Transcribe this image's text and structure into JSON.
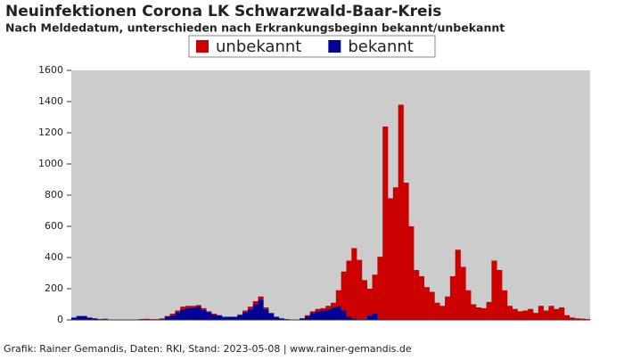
{
  "chart_data": {
    "type": "stacked-bar",
    "title": "Neuinfektionen Corona LK Schwarzwald-Baar-Kreis",
    "subtitle": "Nach Meldedatum, unterschieden nach Erkrankungsbeginn bekannt/unbekannt",
    "source": "Grafik: Rainer Gemandis, Daten: RKI, Stand: 2023-05-08 | www.rainer-gemandis.de",
    "categories": [
      null,
      null,
      null,
      null,
      null,
      null,
      null,
      null,
      null,
      null,
      null,
      null,
      null,
      null,
      null,
      null,
      null,
      null,
      null,
      null,
      null,
      null,
      null,
      null,
      null,
      null,
      null,
      null,
      null,
      null,
      null,
      null,
      null,
      null,
      null,
      null,
      null,
      null,
      null,
      null,
      null,
      null,
      null,
      null,
      null,
      null,
      null,
      null,
      null,
      null,
      null,
      null,
      null,
      null,
      null,
      null,
      null,
      null,
      null,
      null,
      null,
      null,
      null,
      null,
      null,
      null,
      null,
      null,
      null,
      null,
      null,
      null,
      null,
      null,
      null,
      null,
      null,
      null,
      null,
      null,
      null,
      null,
      null,
      null,
      null,
      null,
      null,
      null,
      null,
      null,
      null,
      null,
      null,
      null,
      null,
      null,
      null,
      null,
      null,
      null
    ],
    "series": [
      {
        "name": "unbekannt",
        "color": "#cc0000",
        "values": [
          0,
          0,
          0,
          0,
          0,
          0,
          3,
          0,
          0,
          0,
          0,
          0,
          0,
          0,
          5,
          5,
          5,
          5,
          5,
          10,
          10,
          15,
          15,
          10,
          10,
          10,
          5,
          5,
          0,
          0,
          0,
          0,
          5,
          10,
          15,
          20,
          20,
          10,
          5,
          0,
          0,
          0,
          0,
          0,
          0,
          5,
          10,
          15,
          15,
          20,
          30,
          100,
          250,
          360,
          450,
          380,
          250,
          170,
          250,
          400,
          1240,
          780,
          850,
          1380,
          880,
          600,
          320,
          280,
          210,
          180,
          110,
          90,
          150,
          280,
          450,
          340,
          190,
          100,
          80,
          75,
          115,
          380,
          320,
          190,
          90,
          70,
          55,
          60,
          70,
          45,
          90,
          60,
          90,
          70,
          80,
          30,
          15,
          10,
          8,
          5
        ]
      },
      {
        "name": "bekannt",
        "color": "#000099",
        "values": [
          15,
          25,
          25,
          15,
          10,
          5,
          5,
          2,
          2,
          2,
          2,
          2,
          2,
          5,
          2,
          0,
          0,
          5,
          20,
          30,
          50,
          70,
          75,
          80,
          85,
          65,
          50,
          35,
          30,
          20,
          20,
          20,
          30,
          50,
          70,
          100,
          130,
          70,
          40,
          20,
          10,
          5,
          2,
          2,
          10,
          25,
          45,
          55,
          60,
          70,
          80,
          90,
          60,
          20,
          10,
          5,
          5,
          30,
          40,
          5,
          0,
          0,
          0,
          0,
          0,
          0,
          0,
          0,
          0,
          0,
          0,
          0,
          0,
          0,
          0,
          0,
          0,
          0,
          0,
          0,
          0,
          0,
          0,
          0,
          0,
          0,
          0,
          0,
          0,
          0,
          0,
          0,
          0,
          0,
          0,
          0,
          0,
          0,
          0,
          0
        ]
      }
    ],
    "ylim": [
      0,
      1600
    ],
    "yticks": [
      0,
      200,
      400,
      600,
      800,
      1000,
      1200,
      1400,
      1600
    ],
    "background": "#cccccc"
  }
}
